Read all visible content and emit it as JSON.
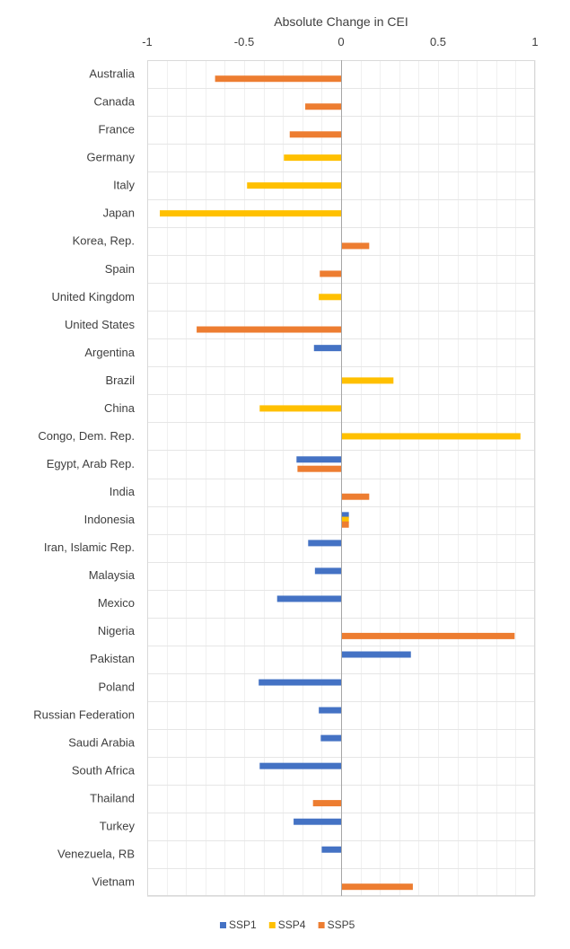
{
  "chart_data": {
    "type": "bar",
    "orientation": "horizontal",
    "title": "Absolute Change in CEI",
    "xlim": [
      -1,
      1
    ],
    "x_ticks": [
      "-1",
      "-0.5",
      "0",
      "0.5",
      "1"
    ],
    "x_tick_values": [
      -1,
      -0.5,
      0,
      0.5,
      1
    ],
    "grid": true,
    "legend_position": "bottom",
    "categories": [
      "Australia",
      "Canada",
      "France",
      "Germany",
      "Italy",
      "Japan",
      "Korea, Rep.",
      "Spain",
      "United Kingdom",
      "United States",
      "Argentina",
      "Brazil",
      "China",
      "Congo, Dem. Rep.",
      "Egypt, Arab Rep.",
      "India",
      "Indonesia",
      "Iran, Islamic Rep.",
      "Malaysia",
      "Mexico",
      "Nigeria",
      "Pakistan",
      "Poland",
      "Russian Federation",
      "Saudi Arabia",
      "South Africa",
      "Thailand",
      "Turkey",
      "Venezuela, RB",
      "Vietnam"
    ],
    "series": [
      {
        "name": "SSP1",
        "color": "#4472c4",
        "values": [
          null,
          null,
          null,
          null,
          null,
          null,
          null,
          null,
          null,
          null,
          -0.14,
          null,
          null,
          null,
          -0.23,
          null,
          0.04,
          -0.17,
          -0.135,
          -0.33,
          null,
          0.36,
          -0.425,
          -0.115,
          -0.105,
          -0.42,
          null,
          -0.245,
          -0.1,
          null
        ]
      },
      {
        "name": "SSP4",
        "color": "#ffc000",
        "values": [
          null,
          null,
          null,
          -0.295,
          -0.485,
          -0.935,
          null,
          null,
          -0.115,
          null,
          null,
          0.27,
          -0.42,
          0.925,
          null,
          null,
          0.04,
          null,
          null,
          null,
          null,
          null,
          null,
          null,
          null,
          null,
          null,
          null,
          null,
          null
        ]
      },
      {
        "name": "SSP5",
        "color": "#ed7d31",
        "values": [
          -0.65,
          -0.185,
          -0.265,
          null,
          null,
          null,
          0.145,
          -0.11,
          null,
          -0.745,
          null,
          null,
          null,
          null,
          -0.225,
          0.145,
          0.04,
          null,
          null,
          null,
          0.895,
          null,
          null,
          null,
          null,
          null,
          -0.145,
          null,
          null,
          0.37
        ]
      }
    ]
  }
}
